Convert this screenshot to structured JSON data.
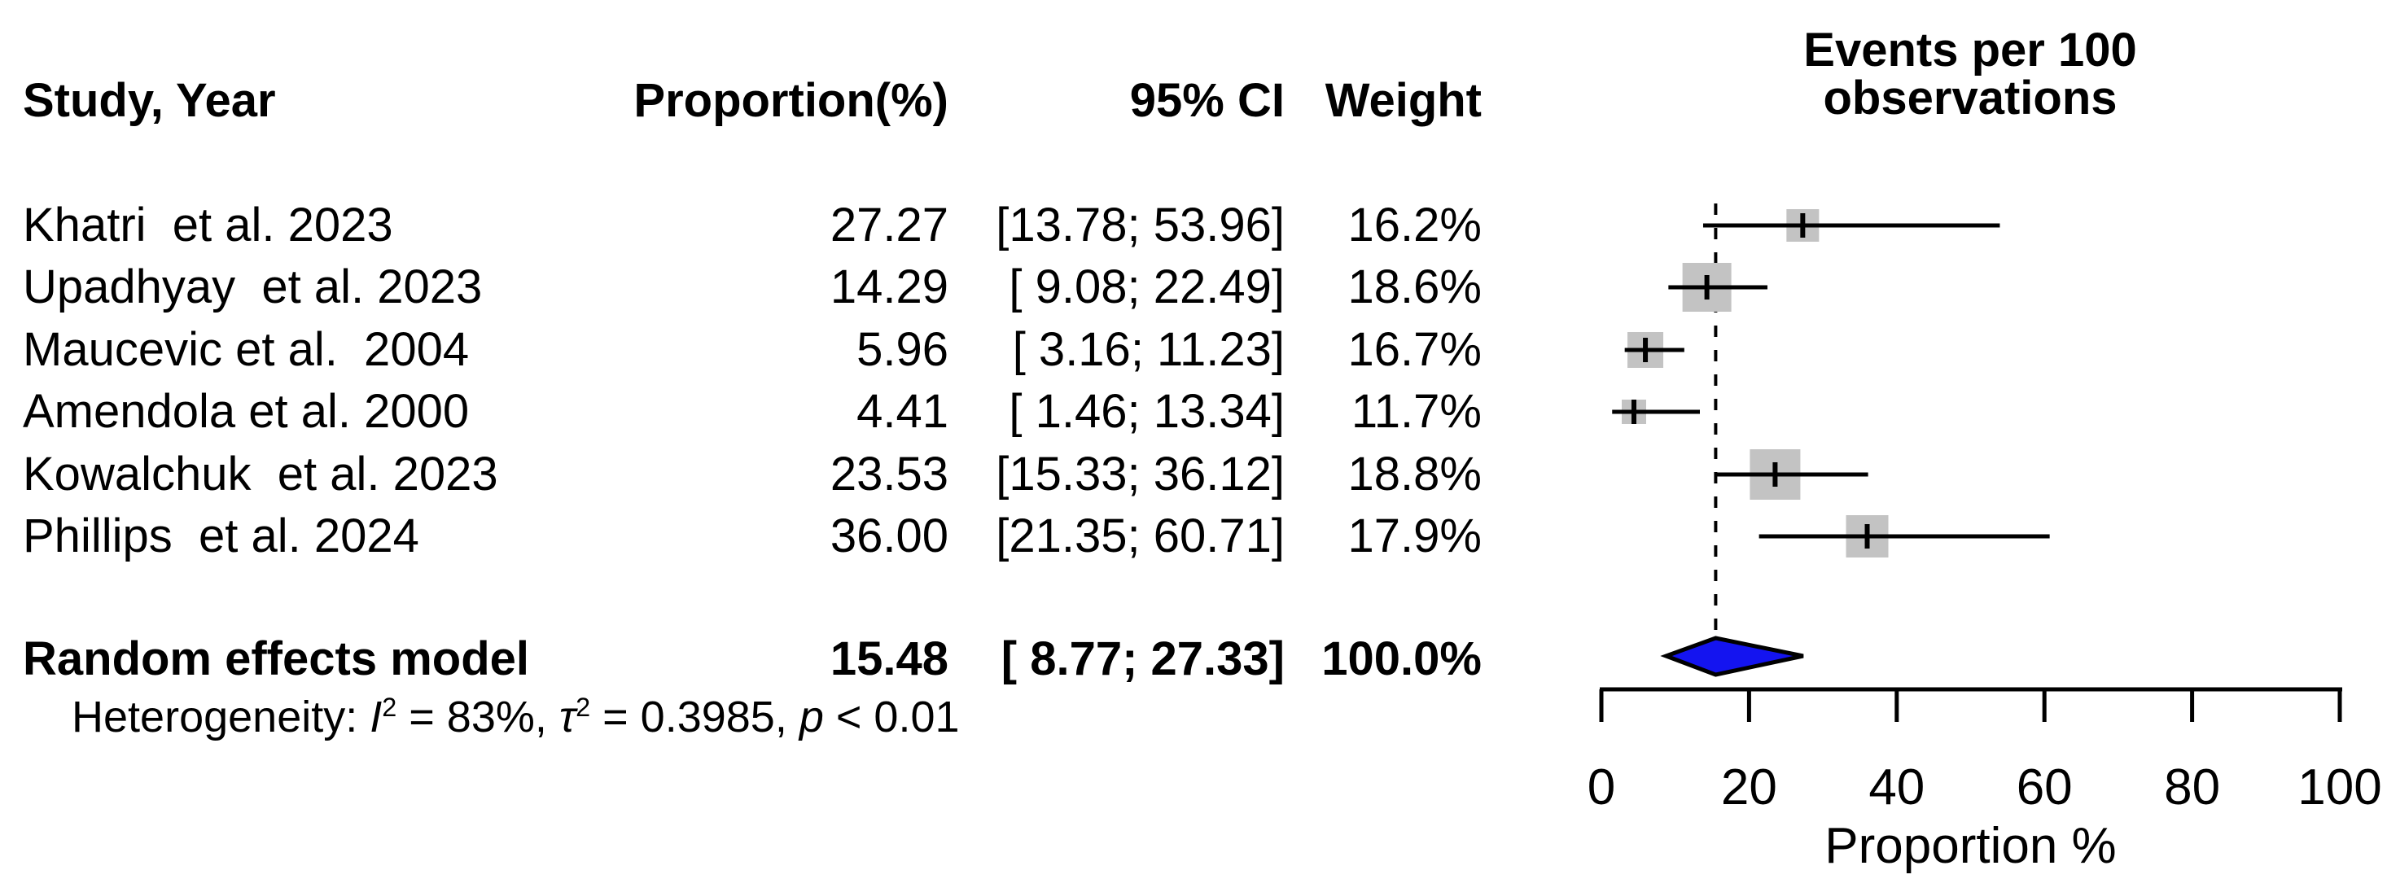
{
  "colors": {
    "background": "#ffffff",
    "text": "#000000",
    "square": "#c3c3c3",
    "diamond_fill": "#1414f0",
    "diamond_stroke": "#000000",
    "line": "#000000"
  },
  "table": {
    "headers": {
      "study": "Study, Year",
      "proportion": "Proportion(%)",
      "ci": "95% CI",
      "weight": "Weight",
      "plot_line1": "Events per 100",
      "plot_line2": "observations"
    },
    "rows": [
      {
        "study": "Khatri  et al. 2023",
        "proportion": "27.27",
        "ci": "[13.78; 53.96]",
        "weight": "16.2%"
      },
      {
        "study": "Upadhyay  et al. 2023",
        "proportion": "14.29",
        "ci": "[ 9.08; 22.49]",
        "weight": "18.6%"
      },
      {
        "study": "Maucevic et al.  2004",
        "proportion": "5.96",
        "ci": "[ 3.16; 11.23]",
        "weight": "16.7%"
      },
      {
        "study": "Amendola et al. 2000",
        "proportion": "4.41",
        "ci": "[ 1.46; 13.34]",
        "weight": "11.7%"
      },
      {
        "study": "Kowalchuk  et al. 2023",
        "proportion": "23.53",
        "ci": "[15.33; 36.12]",
        "weight": "18.8%"
      },
      {
        "study": "Phillips  et al. 2024",
        "proportion": "36.00",
        "ci": "[21.35; 60.71]",
        "weight": "17.9%"
      }
    ],
    "pooled": {
      "label": "Random effects model",
      "proportion": "15.48",
      "ci": "[ 8.77; 27.33]",
      "weight": "100.0%"
    },
    "heterogeneity": {
      "prefix": "Heterogeneity: ",
      "i_symbol": "I",
      "i_sup": "2",
      "i_rest": " = 83%, ",
      "tau_symbol": "τ",
      "tau_sup": "2",
      "tau_rest": " = 0.3985, ",
      "p_symbol": "p",
      "p_rest": " < 0.01"
    }
  },
  "chart_data": {
    "type": "forest",
    "title": "Events per 100 observations",
    "x_axis": {
      "label": "Proportion %",
      "ticks": [
        0,
        20,
        40,
        60,
        80,
        100
      ],
      "range": [
        0,
        100
      ]
    },
    "reference_line": 15.48,
    "studies": [
      {
        "name": "Khatri et al. 2023",
        "est": 27.27,
        "lo": 13.78,
        "hi": 53.96,
        "weight_pct": 16.2,
        "marker_px": 40
      },
      {
        "name": "Upadhyay et al. 2023",
        "est": 14.29,
        "lo": 9.08,
        "hi": 22.49,
        "weight_pct": 18.6,
        "marker_px": 60
      },
      {
        "name": "Maucevic et al. 2004",
        "est": 5.96,
        "lo": 3.16,
        "hi": 11.23,
        "weight_pct": 16.7,
        "marker_px": 44
      },
      {
        "name": "Amendola et al. 2000",
        "est": 4.41,
        "lo": 1.46,
        "hi": 13.34,
        "weight_pct": 11.7,
        "marker_px": 30
      },
      {
        "name": "Kowalchuk et al. 2023",
        "est": 23.53,
        "lo": 15.33,
        "hi": 36.12,
        "weight_pct": 18.8,
        "marker_px": 62
      },
      {
        "name": "Phillips et al. 2024",
        "est": 36.0,
        "lo": 21.35,
        "hi": 60.71,
        "weight_pct": 17.9,
        "marker_px": 52
      }
    ],
    "pooled": {
      "name": "Random effects model",
      "est": 15.48,
      "lo": 8.77,
      "hi": 27.33,
      "weight_pct": 100.0
    },
    "legend": null,
    "grid": false
  }
}
